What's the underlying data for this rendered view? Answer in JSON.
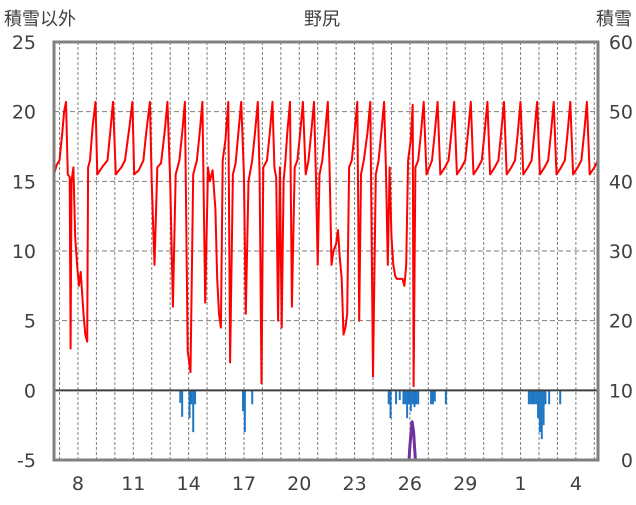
{
  "chart_data": {
    "type": "line",
    "title": "野尻",
    "left_axis_label": "積雪以外",
    "right_axis_label": "積雪",
    "x_tick_labels": [
      "8",
      "11",
      "14",
      "17",
      "20",
      "23",
      "26",
      "29",
      "1",
      "4"
    ],
    "x_tick_days": [
      8,
      11,
      14,
      17,
      20,
      23,
      26,
      29,
      32,
      35
    ],
    "x_range": [
      6.7,
      36.2
    ],
    "ylim_left": [
      -5,
      25
    ],
    "left_ticks": [
      25,
      20,
      15,
      10,
      5,
      0,
      -5
    ],
    "ylim_right": [
      0,
      60
    ],
    "right_ticks": [
      60,
      50,
      40,
      30,
      20,
      10,
      0
    ],
    "colors": {
      "main_line": "#ff0000",
      "blue_bars": "#1f77c4",
      "bottom_line": "#7030a0",
      "frame": "#808080",
      "grid": "#7f7f7f"
    },
    "series": [
      {
        "axis": "left",
        "color": "#ff0000",
        "points": [
          [
            6.7,
            15.5
          ],
          [
            6.85,
            16.2
          ],
          [
            7.0,
            16.5
          ],
          [
            7.15,
            18.5
          ],
          [
            7.25,
            20.0
          ],
          [
            7.35,
            20.7
          ],
          [
            7.45,
            15.5
          ],
          [
            7.55,
            15.3
          ],
          [
            7.6,
            3.0
          ],
          [
            7.65,
            15.0
          ],
          [
            7.75,
            16.0
          ],
          [
            7.85,
            11.0
          ],
          [
            7.95,
            9.0
          ],
          [
            8.05,
            7.5
          ],
          [
            8.15,
            8.5
          ],
          [
            8.3,
            5.5
          ],
          [
            8.4,
            4.0
          ],
          [
            8.5,
            3.5
          ],
          [
            8.55,
            16.0
          ],
          [
            8.65,
            16.5
          ],
          [
            8.8,
            19.0
          ],
          [
            8.95,
            20.7
          ],
          [
            9.05,
            15.5
          ],
          [
            9.3,
            16.0
          ],
          [
            9.6,
            16.5
          ],
          [
            9.75,
            18.5
          ],
          [
            9.9,
            20.7
          ],
          [
            10.05,
            15.5
          ],
          [
            10.35,
            16.0
          ],
          [
            10.55,
            16.5
          ],
          [
            10.8,
            19.0
          ],
          [
            10.95,
            20.7
          ],
          [
            11.05,
            15.5
          ],
          [
            11.3,
            15.8
          ],
          [
            11.55,
            16.5
          ],
          [
            11.7,
            18.5
          ],
          [
            11.9,
            20.7
          ],
          [
            12.0,
            15.0
          ],
          [
            12.15,
            9.0
          ],
          [
            12.3,
            16.0
          ],
          [
            12.5,
            16.3
          ],
          [
            12.7,
            18.5
          ],
          [
            12.85,
            20.7
          ],
          [
            13.0,
            15.0
          ],
          [
            13.15,
            6.0
          ],
          [
            13.3,
            15.5
          ],
          [
            13.5,
            16.5
          ],
          [
            13.65,
            18.5
          ],
          [
            13.8,
            20.7
          ],
          [
            13.95,
            2.8
          ],
          [
            14.1,
            1.3
          ],
          [
            14.25,
            15.5
          ],
          [
            14.45,
            16.5
          ],
          [
            14.6,
            18.5
          ],
          [
            14.75,
            20.7
          ],
          [
            14.9,
            6.3
          ],
          [
            15.05,
            16.0
          ],
          [
            15.15,
            15.0
          ],
          [
            15.3,
            15.8
          ],
          [
            15.45,
            13.0
          ],
          [
            15.55,
            8.0
          ],
          [
            15.65,
            5.5
          ],
          [
            15.75,
            4.5
          ],
          [
            15.85,
            16.5
          ],
          [
            16.0,
            18.0
          ],
          [
            16.15,
            20.7
          ],
          [
            16.25,
            2.0
          ],
          [
            16.4,
            15.5
          ],
          [
            16.55,
            16.3
          ],
          [
            16.7,
            18.5
          ],
          [
            16.85,
            20.7
          ],
          [
            17.0,
            15.5
          ],
          [
            17.1,
            5.5
          ],
          [
            17.25,
            15.0
          ],
          [
            17.45,
            16.5
          ],
          [
            17.6,
            18.5
          ],
          [
            17.75,
            20.7
          ],
          [
            17.85,
            15.5
          ],
          [
            17.95,
            0.5
          ],
          [
            18.05,
            16.0
          ],
          [
            18.25,
            16.5
          ],
          [
            18.4,
            18.5
          ],
          [
            18.55,
            20.7
          ],
          [
            18.65,
            16.0
          ],
          [
            18.75,
            15.3
          ],
          [
            18.85,
            5.0
          ],
          [
            18.95,
            16.0
          ],
          [
            19.05,
            4.5
          ],
          [
            19.15,
            15.0
          ],
          [
            19.25,
            16.5
          ],
          [
            19.35,
            18.5
          ],
          [
            19.5,
            20.7
          ],
          [
            19.6,
            6.0
          ],
          [
            19.75,
            16.0
          ],
          [
            19.9,
            16.5
          ],
          [
            20.05,
            18.5
          ],
          [
            20.2,
            20.7
          ],
          [
            20.35,
            15.5
          ],
          [
            20.5,
            16.5
          ],
          [
            20.65,
            18.5
          ],
          [
            20.8,
            20.7
          ],
          [
            20.9,
            15.5
          ],
          [
            21.0,
            9.0
          ],
          [
            21.1,
            15.5
          ],
          [
            21.25,
            16.5
          ],
          [
            21.4,
            18.5
          ],
          [
            21.55,
            20.7
          ],
          [
            21.65,
            15.5
          ],
          [
            21.75,
            9.0
          ],
          [
            21.85,
            10.0
          ],
          [
            22.0,
            10.5
          ],
          [
            22.1,
            11.5
          ],
          [
            22.2,
            9.5
          ],
          [
            22.3,
            8.0
          ],
          [
            22.4,
            4.0
          ],
          [
            22.5,
            4.5
          ],
          [
            22.6,
            5.5
          ],
          [
            22.7,
            16.0
          ],
          [
            22.85,
            16.5
          ],
          [
            23.0,
            18.5
          ],
          [
            23.15,
            20.7
          ],
          [
            23.25,
            5.0
          ],
          [
            23.35,
            15.5
          ],
          [
            23.5,
            16.5
          ],
          [
            23.7,
            18.5
          ],
          [
            23.85,
            20.7
          ],
          [
            24.0,
            1.0
          ],
          [
            24.15,
            15.5
          ],
          [
            24.3,
            16.5
          ],
          [
            24.45,
            18.5
          ],
          [
            24.6,
            20.7
          ],
          [
            24.7,
            16.0
          ],
          [
            24.8,
            9.0
          ],
          [
            24.9,
            16.0
          ],
          [
            25.0,
            11.0
          ],
          [
            25.1,
            9.0
          ],
          [
            25.2,
            8.2
          ],
          [
            25.3,
            8.0
          ],
          [
            25.4,
            8.0
          ],
          [
            25.5,
            8.0
          ],
          [
            25.6,
            8.0
          ],
          [
            25.7,
            7.5
          ],
          [
            25.8,
            9.0
          ],
          [
            25.9,
            16.5
          ],
          [
            26.05,
            18.0
          ],
          [
            26.15,
            20.5
          ],
          [
            26.2,
            0.3
          ],
          [
            26.3,
            16.0
          ],
          [
            26.45,
            16.5
          ],
          [
            26.6,
            18.5
          ],
          [
            26.75,
            20.7
          ],
          [
            26.9,
            15.5
          ],
          [
            27.05,
            16.0
          ],
          [
            27.2,
            16.5
          ],
          [
            27.35,
            18.5
          ],
          [
            27.5,
            20.7
          ],
          [
            27.65,
            15.5
          ],
          [
            27.9,
            16.0
          ],
          [
            28.1,
            16.5
          ],
          [
            28.25,
            18.5
          ],
          [
            28.4,
            20.7
          ],
          [
            28.55,
            15.5
          ],
          [
            28.8,
            16.0
          ],
          [
            29.0,
            16.5
          ],
          [
            29.15,
            18.5
          ],
          [
            29.3,
            20.7
          ],
          [
            29.45,
            15.5
          ],
          [
            29.7,
            16.0
          ],
          [
            29.9,
            16.5
          ],
          [
            30.05,
            18.5
          ],
          [
            30.2,
            20.7
          ],
          [
            30.35,
            15.5
          ],
          [
            30.6,
            16.0
          ],
          [
            30.8,
            16.5
          ],
          [
            30.95,
            18.5
          ],
          [
            31.1,
            20.7
          ],
          [
            31.25,
            15.5
          ],
          [
            31.5,
            16.0
          ],
          [
            31.7,
            16.5
          ],
          [
            31.85,
            18.5
          ],
          [
            32.0,
            20.7
          ],
          [
            32.15,
            15.5
          ],
          [
            32.4,
            16.0
          ],
          [
            32.6,
            16.5
          ],
          [
            32.75,
            18.5
          ],
          [
            32.9,
            20.7
          ],
          [
            33.05,
            15.5
          ],
          [
            33.3,
            16.0
          ],
          [
            33.5,
            16.5
          ],
          [
            33.65,
            18.5
          ],
          [
            33.8,
            20.7
          ],
          [
            33.95,
            15.5
          ],
          [
            34.2,
            16.0
          ],
          [
            34.4,
            16.5
          ],
          [
            34.55,
            18.5
          ],
          [
            34.7,
            20.7
          ],
          [
            34.85,
            15.5
          ],
          [
            35.1,
            16.0
          ],
          [
            35.3,
            16.5
          ],
          [
            35.45,
            18.5
          ],
          [
            35.6,
            20.7
          ],
          [
            35.75,
            15.5
          ],
          [
            36.0,
            16.0
          ],
          [
            36.2,
            16.5
          ]
        ]
      },
      {
        "axis": "left",
        "color": "#1f77c4",
        "bar_width_days": 0.08,
        "bars": [
          [
            13.55,
            -0.9
          ],
          [
            13.65,
            -1.9
          ],
          [
            14.05,
            -2.0
          ],
          [
            14.15,
            -1.0
          ],
          [
            14.25,
            -3.0
          ],
          [
            14.35,
            -1.0
          ],
          [
            16.95,
            -1.5
          ],
          [
            17.05,
            -3.0
          ],
          [
            17.45,
            -1.0
          ],
          [
            24.85,
            -1.0
          ],
          [
            24.95,
            -2.0
          ],
          [
            25.25,
            -1.0
          ],
          [
            25.45,
            -0.7
          ],
          [
            25.65,
            -1.0
          ],
          [
            25.75,
            -1.0
          ],
          [
            25.85,
            -2.0
          ],
          [
            25.95,
            -1.0
          ],
          [
            26.05,
            -1.5
          ],
          [
            26.15,
            -1.0
          ],
          [
            26.25,
            -1.2
          ],
          [
            26.35,
            -1.0
          ],
          [
            26.45,
            -1.0
          ],
          [
            27.15,
            -1.0
          ],
          [
            27.25,
            -1.0
          ],
          [
            27.35,
            -0.8
          ],
          [
            27.95,
            -1.0
          ],
          [
            32.45,
            -1.0
          ],
          [
            32.55,
            -1.0
          ],
          [
            32.65,
            -1.0
          ],
          [
            32.75,
            -1.0
          ],
          [
            32.85,
            -1.0
          ],
          [
            32.95,
            -2.0
          ],
          [
            33.05,
            -3.0
          ],
          [
            33.15,
            -3.5
          ],
          [
            33.25,
            -2.5
          ],
          [
            33.35,
            -1.0
          ],
          [
            33.55,
            -1.0
          ],
          [
            34.15,
            -1.0
          ]
        ]
      },
      {
        "axis": "right",
        "color": "#7030a0",
        "points": [
          [
            6.7,
            0
          ],
          [
            25.95,
            0
          ],
          [
            26.0,
            2.0
          ],
          [
            26.08,
            4.5
          ],
          [
            26.12,
            5.5
          ],
          [
            26.2,
            4.0
          ],
          [
            26.3,
            0
          ],
          [
            36.2,
            0
          ]
        ]
      }
    ]
  }
}
